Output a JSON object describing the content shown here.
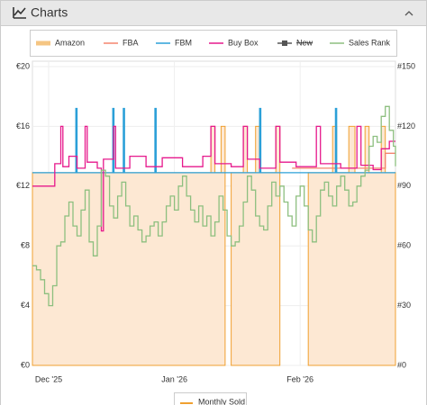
{
  "panel": {
    "title": "Charts"
  },
  "chart_data": {
    "type": "step",
    "xlim": [
      -4,
      85.5
    ],
    "xticks": [
      {
        "value": 0,
        "label": "Dec '25"
      },
      {
        "value": 31,
        "label": "Jan '26"
      },
      {
        "value": 62,
        "label": "Feb '26"
      }
    ],
    "ylim": [
      0,
      20
    ],
    "yticks": [
      {
        "value": 0,
        "label": "€0"
      },
      {
        "value": 4,
        "label": "€4"
      },
      {
        "value": 8,
        "label": "€8"
      },
      {
        "value": 12,
        "label": "€12"
      },
      {
        "value": 16,
        "label": "€16"
      },
      {
        "value": 20,
        "label": "€20"
      }
    ],
    "y2lim": [
      0,
      150
    ],
    "y2ticks": [
      {
        "value": 0,
        "label": "#0"
      },
      {
        "value": 30,
        "label": "#30"
      },
      {
        "value": 60,
        "label": "#60"
      },
      {
        "value": 90,
        "label": "#90"
      },
      {
        "value": 120,
        "label": "#120"
      },
      {
        "value": 150,
        "label": "#150"
      }
    ],
    "grid": true,
    "legend": "top",
    "series": [
      {
        "name": "Amazon",
        "color": "#f0a030",
        "fill": "#fde8d3",
        "area": true,
        "x": [
          -4,
          40,
          41,
          42.5,
          43.5,
          44,
          45,
          48,
          49,
          51,
          52,
          56,
          57,
          63.5,
          64,
          70,
          71,
          74,
          75.5,
          78,
          79,
          82,
          83,
          85.5
        ],
        "values": [
          12.9,
          16,
          12.9,
          16,
          12.9,
          null,
          12.9,
          16,
          12.9,
          16,
          12.9,
          16,
          12.9,
          null,
          12.9,
          16,
          12.9,
          16,
          12.9,
          16,
          12.9,
          16,
          12.9,
          12.9
        ]
      },
      {
        "name": "FBA",
        "color": "#f4846e",
        "x": [
          60,
          82,
          83,
          85.5
        ],
        "values": [
          13.2,
          13.2,
          14.2,
          14.2
        ]
      },
      {
        "name": "FBM",
        "color": "#2ba0d8",
        "x": [
          -4,
          6.7,
          7,
          15.8,
          16.1,
          18.4,
          18.7,
          26.2,
          26.5,
          52,
          52.3,
          70.7,
          71,
          85.5
        ],
        "values": [
          12.9,
          17.2,
          12.9,
          17.2,
          12.9,
          17.2,
          12.9,
          17.2,
          12.9,
          17.2,
          12.9,
          17.2,
          12.9,
          12.9
        ]
      },
      {
        "name": "Buy Box",
        "color": "#e6198c",
        "x": [
          -4,
          1.5,
          3,
          3.5,
          5,
          7,
          9,
          9.5,
          12,
          13,
          13.5,
          16,
          16.5,
          20,
          24,
          28,
          33,
          38,
          40,
          41,
          45,
          48,
          49,
          52,
          56,
          57,
          61,
          66,
          67,
          72,
          76,
          77,
          80,
          82,
          84,
          85.5
        ],
        "values": [
          12,
          13.5,
          16,
          13.3,
          14,
          13.2,
          16,
          13.6,
          13.2,
          9,
          13.8,
          16,
          13.2,
          14,
          13.3,
          13.9,
          13.3,
          14,
          16,
          13.5,
          13.3,
          16,
          13.8,
          13.2,
          16,
          13.6,
          13.3,
          16,
          13.5,
          13.2,
          16,
          13.4,
          13.1,
          14.5,
          15,
          15
        ]
      },
      {
        "name": "New",
        "color": "#555555",
        "hidden": true,
        "x": [],
        "values": []
      },
      {
        "name": "Sales Rank",
        "color": "#8dbf7f",
        "axis": "y2",
        "x": [
          -4,
          -3,
          -2,
          -1,
          0,
          1,
          2,
          3,
          4,
          5,
          6,
          7,
          8,
          9,
          10,
          11,
          12,
          13,
          14,
          15,
          16,
          17,
          18,
          19,
          20,
          21,
          22,
          23,
          24,
          25,
          26,
          27,
          28,
          29,
          30,
          31,
          32,
          33,
          34,
          35,
          36,
          37,
          38,
          39,
          40,
          41,
          42,
          43,
          44,
          45,
          46,
          47,
          48,
          49,
          50,
          51,
          52,
          53,
          54,
          55,
          56,
          57,
          58,
          59,
          60,
          61,
          62,
          63,
          64,
          65,
          66,
          67,
          68,
          69,
          70,
          71,
          72,
          73,
          74,
          75,
          76,
          77,
          78,
          79,
          80,
          81,
          82,
          83,
          84,
          85,
          85.5
        ],
        "values": [
          50,
          48,
          43,
          36,
          30,
          40,
          60,
          62,
          75,
          82,
          70,
          65,
          78,
          88,
          62,
          55,
          70,
          98,
          95,
          80,
          74,
          85,
          92,
          80,
          70,
          75,
          68,
          62,
          65,
          70,
          72,
          65,
          72,
          80,
          85,
          78,
          90,
          95,
          85,
          78,
          72,
          80,
          70,
          75,
          65,
          72,
          85,
          78,
          65,
          60,
          62,
          70,
          82,
          95,
          88,
          75,
          70,
          68,
          80,
          92,
          85,
          90,
          82,
          75,
          70,
          85,
          90,
          80,
          68,
          62,
          75,
          88,
          92,
          85,
          80,
          90,
          95,
          88,
          80,
          82,
          90,
          95,
          98,
          110,
          115,
          112,
          125,
          130,
          118,
          110,
          100
        ]
      }
    ],
    "extra_legend": "Monthly Sold"
  }
}
